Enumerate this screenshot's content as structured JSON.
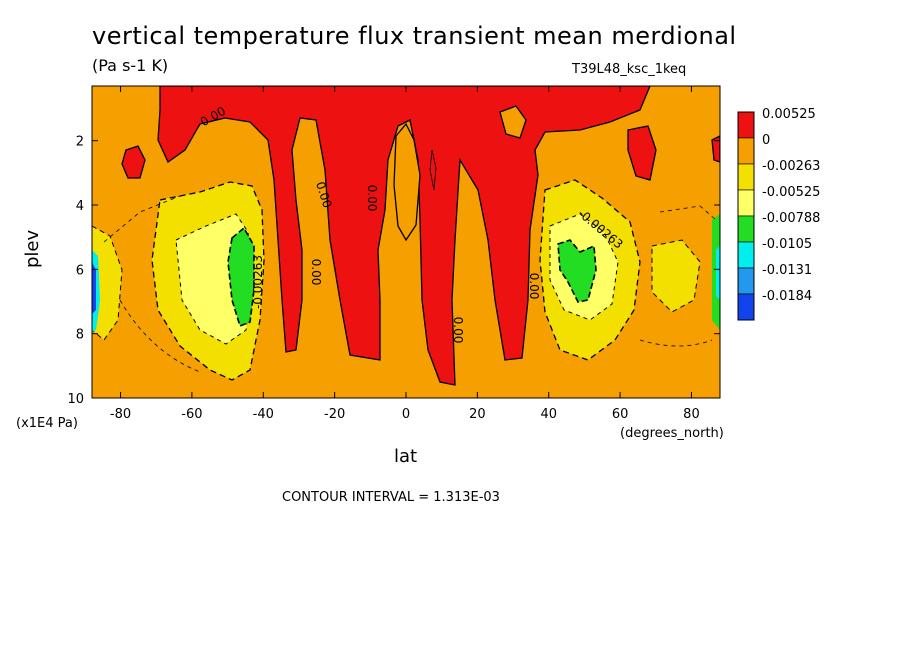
{
  "title": "vertical temperature flux transient mean merdional",
  "units": "(Pa s-1 K)",
  "run_label": "T39L48_ksc_1keq",
  "contour_interval": "CONTOUR INTERVAL = 1.313E-03",
  "chart_data": {
    "type": "heatmap",
    "title": "vertical temperature flux transient mean merdional",
    "subtitle": "(Pa s-1 K)",
    "xlabel": "lat",
    "xunit": "(degrees_north)",
    "ylabel": "plev",
    "yunit": "(x1E4 Pa)",
    "xlim": [
      -88,
      88
    ],
    "ylim": [
      10,
      0.3
    ],
    "xticks": [
      -80,
      -60,
      -40,
      -20,
      0,
      20,
      40,
      60,
      80
    ],
    "yticks": [
      2,
      4,
      6,
      8,
      10
    ],
    "legend": {
      "placement": "right",
      "levels": [
        {
          "label": "0.00525",
          "color": "#ee1111"
        },
        {
          "label": "0",
          "color": "#f5a000"
        },
        {
          "label": "-0.00263",
          "color": "#f3e000"
        },
        {
          "label": "-0.00525",
          "color": "#ffff66"
        },
        {
          "label": "-0.00788",
          "color": "#22dd22"
        },
        {
          "label": "-0.0105",
          "color": "#00eeee"
        },
        {
          "label": "-0.0131",
          "color": "#2299ee"
        },
        {
          "label": "-0.0184",
          "color": "#1144ee"
        }
      ]
    },
    "contour_labels": [
      "0.00",
      "0.00",
      "0.00",
      "0.00",
      "0.00",
      "0.00",
      "-0.00263",
      "-0.00263"
    ]
  }
}
